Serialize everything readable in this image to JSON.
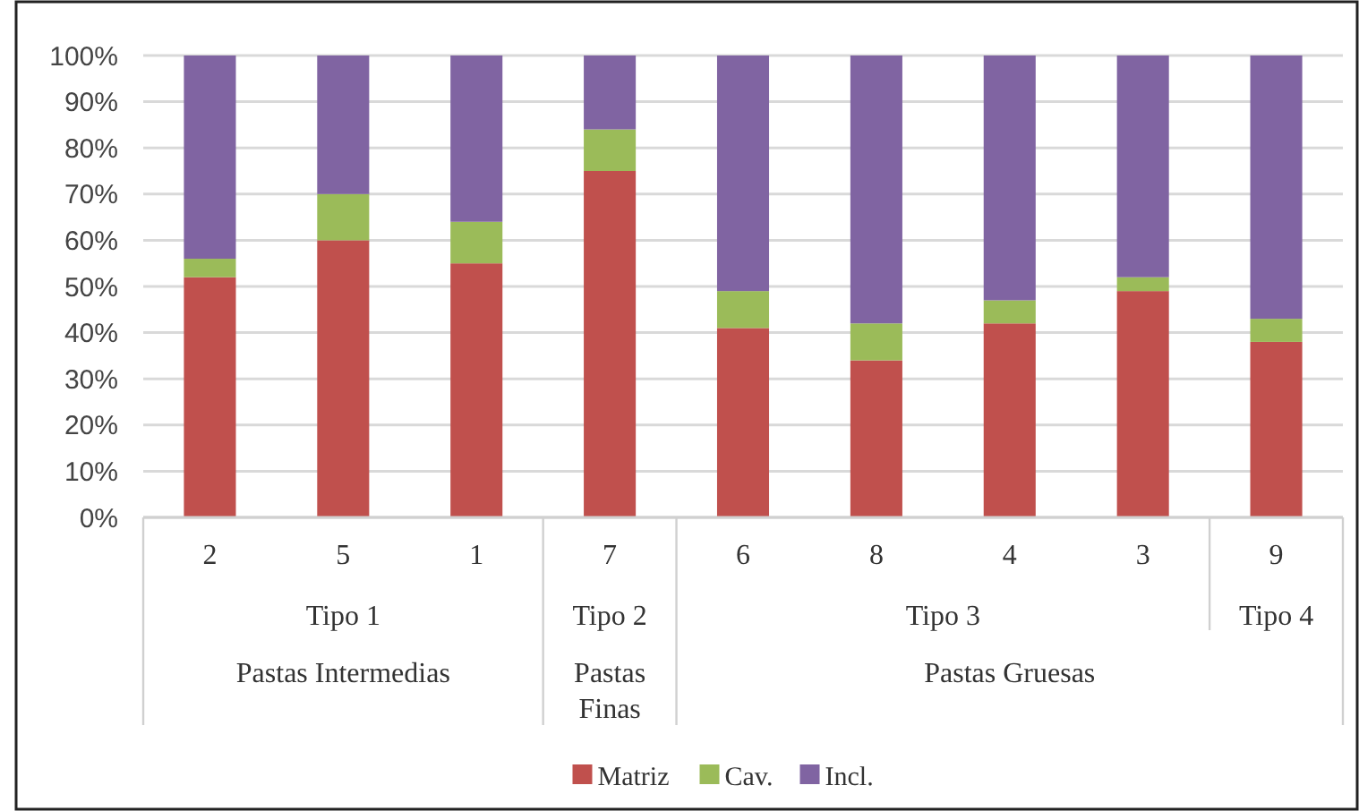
{
  "chart_data": {
    "type": "bar",
    "stacked": true,
    "categories": [
      "2",
      "5",
      "1",
      "7",
      "6",
      "8",
      "4",
      "3",
      "9"
    ],
    "series": [
      {
        "name": "Matriz",
        "color": "#c0504d",
        "values": [
          52,
          60,
          55,
          75,
          41,
          34,
          42,
          49,
          38
        ]
      },
      {
        "name": "Cav.",
        "color": "#9bbb59",
        "values": [
          4,
          10,
          9,
          9,
          8,
          8,
          5,
          3,
          5
        ]
      },
      {
        "name": "Incl.",
        "color": "#8064a2",
        "values": [
          44,
          30,
          36,
          16,
          51,
          58,
          53,
          48,
          57
        ]
      }
    ],
    "ylim": [
      0,
      100
    ],
    "yticks": [
      {
        "value": 0,
        "label": "0%"
      },
      {
        "value": 10,
        "label": "10%"
      },
      {
        "value": 20,
        "label": "20%"
      },
      {
        "value": 30,
        "label": "30%"
      },
      {
        "value": 40,
        "label": "40%"
      },
      {
        "value": 50,
        "label": "50%"
      },
      {
        "value": 60,
        "label": "60%"
      },
      {
        "value": 70,
        "label": "70%"
      },
      {
        "value": 80,
        "label": "80%"
      },
      {
        "value": 90,
        "label": "90%"
      },
      {
        "value": 100,
        "label": "100%"
      }
    ],
    "annotations": [
      "Tipo 1",
      "Tipo 2",
      "Tipo 3",
      "Tipo 4",
      "Pastas Intermedias",
      "Pastas\nFinas",
      "Pastas Gruesas"
    ],
    "grid": "y",
    "legend": "bottom"
  }
}
